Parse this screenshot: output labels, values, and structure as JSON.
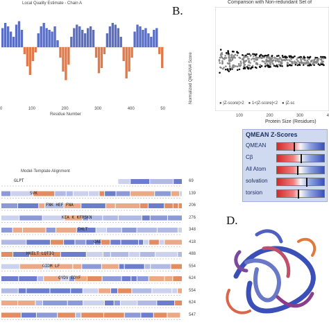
{
  "panels": {
    "a": {
      "title": "Local Quality Estimate - Chain A",
      "xlabel": "Residue Number",
      "ticks": [
        "0",
        "100",
        "200",
        "300",
        "400",
        "50"
      ]
    },
    "b": {
      "letter": "B.",
      "title": "Comparison with Non-redundant Set of",
      "ylabel": "Normalized QMEAN4 Score",
      "xlabel": "Protein Size (Residues)",
      "xticks": [
        "100",
        "200",
        "300",
        "4"
      ],
      "legend": [
        "|Z-score|>2",
        "1<|Z-score|<2",
        "|Z-sc"
      ]
    },
    "zscores": {
      "title": "QMEAN Z-Scores",
      "rows": [
        {
          "label": "QMEAN",
          "value": 0.35
        },
        {
          "label": "Cβ",
          "value": 0.5
        },
        {
          "label": "All Atom",
          "value": 0.42
        },
        {
          "label": "solvation",
          "value": 0.62
        },
        {
          "label": "torsion",
          "value": 0.44
        }
      ]
    },
    "c": {
      "title": "Model-Template Alignment",
      "line_numbers": [
        "69",
        "139",
        "206",
        "276",
        "348",
        "418",
        "488",
        "554",
        "624",
        "554",
        "624",
        "547"
      ],
      "sample_text": [
        "GLPT",
        "SVK",
        "FNK HEF FNA",
        "KEA K KFRSKN",
        "IHLT",
        "QAE",
        "HKELT LQTIQ",
        "GIDM LF",
        "QYDV EDYF"
      ]
    },
    "d": {
      "letter": "D."
    }
  },
  "chart_data": [
    {
      "type": "bar",
      "title": "Local Quality Estimate - Chain A",
      "xlabel": "Residue Number",
      "ylabel": "",
      "note": "per-residue local quality profile; blue above baseline, orange below",
      "series": [
        {
          "name": "",
          "values": [
            0.55,
            0.7,
            0.6,
            0.45,
            0.3,
            0.65,
            0.75,
            0.5,
            -0.2,
            -0.55,
            -0.8,
            -0.4,
            -0.15,
            0.4,
            0.6,
            0.7,
            0.55,
            0.5,
            0.45,
            0.6,
            0.2,
            -0.3,
            -0.7,
            -0.95,
            -0.5,
            0.3,
            0.55,
            0.65,
            0.6,
            0.5,
            0.4,
            0.55,
            0.6,
            0.5,
            -0.3,
            -0.75,
            -0.6,
            -0.2,
            0.4,
            0.6,
            0.7,
            0.65,
            0.55,
            0.3,
            -0.4,
            -0.9,
            -0.7,
            -0.3,
            0.45,
            0.65,
            0.6,
            0.5,
            0.55,
            0.4,
            0.3,
            0.5,
            0.55,
            -0.2,
            -0.6
          ]
        }
      ]
    },
    {
      "type": "scatter",
      "title": "Comparison with Non-redundant Set of",
      "xlabel": "Protein Size (Residues)",
      "ylabel": "Normalized QMEAN4 Score",
      "xlim": [
        0,
        450
      ],
      "grid": false,
      "legend": "bottom"
    },
    {
      "type": "bar",
      "title": "QMEAN Z-Scores",
      "categories": [
        "QMEAN",
        "Cβ",
        "All Atom",
        "solvation",
        "torsion"
      ],
      "values": [
        0.35,
        0.5,
        0.42,
        0.62,
        0.44
      ]
    }
  ]
}
